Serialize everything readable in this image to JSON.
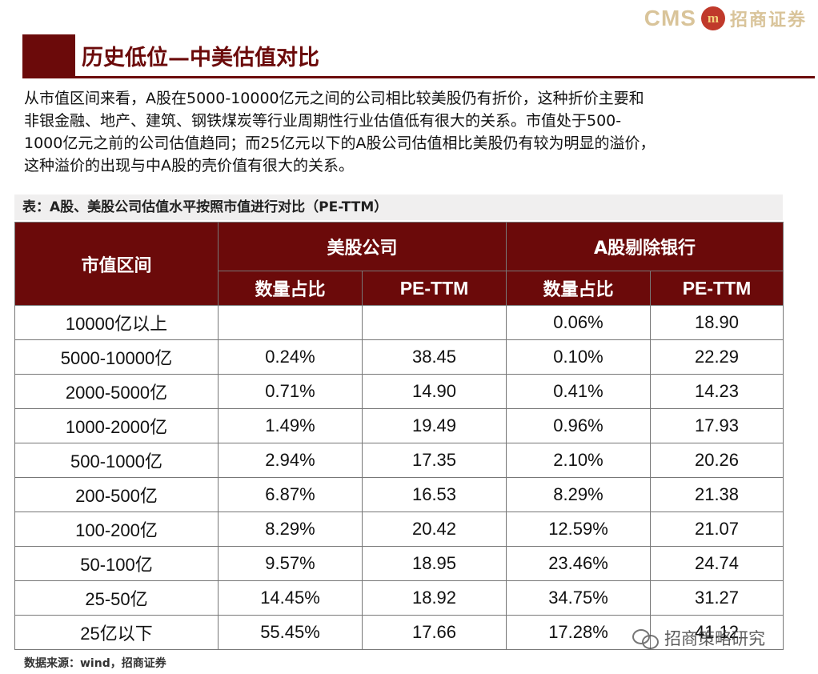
{
  "logo": {
    "brand": "CMS",
    "badge": "m",
    "name_cn": "招商证券"
  },
  "title": "历史低位—中美估值对比",
  "paragraph": [
    "从市值区间来看，A股在5000-10000亿元之间的公司相比较美股仍有折价，这种折价主要和",
    "非银金融、地产、建筑、钢铁煤炭等行业周期性行业估值低有很大的关系。市值处于500-",
    "1000亿元之前的公司估值趋同；而25亿元以下的A股公司估值相比美股仍有较为明显的溢价，",
    "这种溢价的出现与中A股的壳价值有很大的关系。"
  ],
  "table_caption": "表：A股、美股公司估值水平按照市值进行对比（PE-TTM）",
  "table": {
    "col0_header": "市值区间",
    "group_us": "美股公司",
    "group_a": "A股剔除银行",
    "sub_share": "数量占比",
    "sub_pe": "PE-TTM",
    "rows": [
      {
        "range": "10000亿以上",
        "us_share": "",
        "us_pe": "",
        "a_share": "0.06%",
        "a_pe": "18.90"
      },
      {
        "range": "5000-10000亿",
        "us_share": "0.24%",
        "us_pe": "38.45",
        "a_share": "0.10%",
        "a_pe": "22.29"
      },
      {
        "range": "2000-5000亿",
        "us_share": "0.71%",
        "us_pe": "14.90",
        "a_share": "0.41%",
        "a_pe": "14.23"
      },
      {
        "range": "1000-2000亿",
        "us_share": "1.49%",
        "us_pe": "19.49",
        "a_share": "0.96%",
        "a_pe": "17.93"
      },
      {
        "range": "500-1000亿",
        "us_share": "2.94%",
        "us_pe": "17.35",
        "a_share": "2.10%",
        "a_pe": "20.26"
      },
      {
        "range": "200-500亿",
        "us_share": "6.87%",
        "us_pe": "16.53",
        "a_share": "8.29%",
        "a_pe": "21.38"
      },
      {
        "range": "100-200亿",
        "us_share": "8.29%",
        "us_pe": "20.42",
        "a_share": "12.59%",
        "a_pe": "21.07"
      },
      {
        "range": "50-100亿",
        "us_share": "9.57%",
        "us_pe": "18.95",
        "a_share": "23.46%",
        "a_pe": "24.74"
      },
      {
        "range": "25-50亿",
        "us_share": "14.45%",
        "us_pe": "18.92",
        "a_share": "34.75%",
        "a_pe": "31.27"
      },
      {
        "range": "25亿以下",
        "us_share": "55.45%",
        "us_pe": "17.66",
        "a_share": "17.28%",
        "a_pe": "41.12"
      }
    ]
  },
  "watermark": "招商策略研究",
  "source": "数据来源：wind，招商证券",
  "colors": {
    "accent": "#6b0a0a",
    "logo_gold": "#d9c49a",
    "caption_bg": "#f0efef"
  }
}
